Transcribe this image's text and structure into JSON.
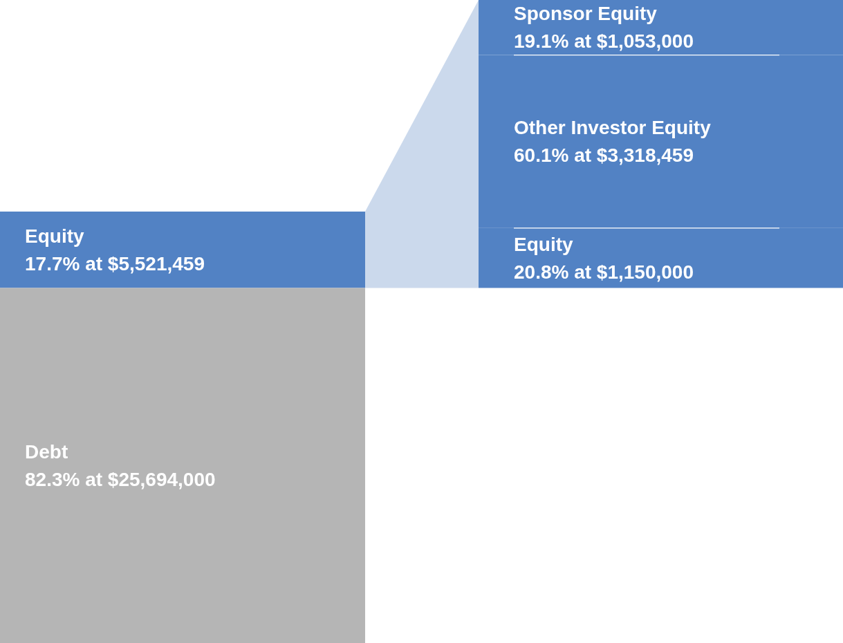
{
  "chart_data": [
    {
      "type": "other",
      "categories": [
        "Equity",
        "Debt"
      ],
      "values": [
        17.7,
        82.3
      ],
      "value_labels": [
        "17.7% at $5,521,459",
        "82.3% at $25,694,000"
      ],
      "colors": [
        "#5282c4",
        "#b5b5b5"
      ]
    },
    {
      "type": "other",
      "categories": [
        "Sponsor Equity",
        "Other Investor Equity",
        "Equity"
      ],
      "values": [
        19.1,
        60.1,
        20.8
      ],
      "value_labels": [
        "19.1% at $1,053,000",
        "60.1% at $3,318,459",
        "20.8% at $1,150,000"
      ],
      "color": "#5282c4"
    }
  ]
}
